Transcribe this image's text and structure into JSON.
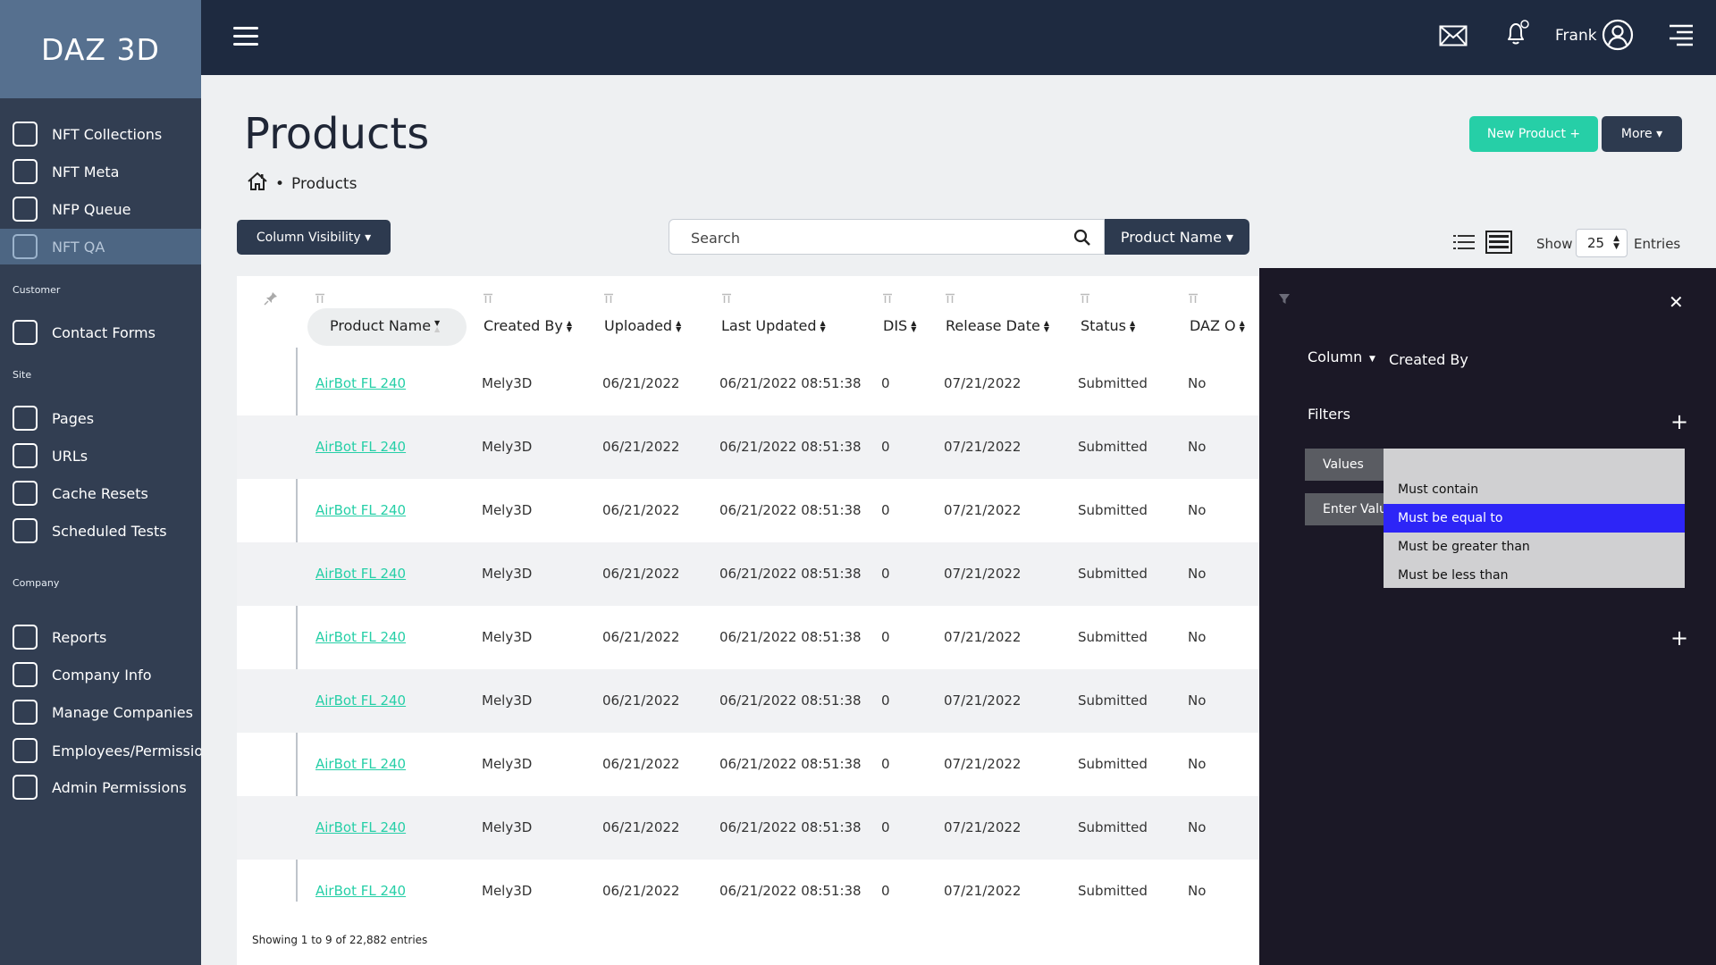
{
  "brand": "DAZ 3D",
  "sidebar": {
    "items": [
      {
        "label": "NFT Collections"
      },
      {
        "label": "NFT Meta"
      },
      {
        "label": "NFP Queue"
      },
      {
        "label": "NFT QA"
      }
    ],
    "sections": [
      {
        "title": "Customer",
        "items": [
          {
            "label": "Contact Forms"
          }
        ]
      },
      {
        "title": "Site",
        "items": [
          {
            "label": "Pages"
          },
          {
            "label": "URLs"
          },
          {
            "label": "Cache Resets"
          },
          {
            "label": "Scheduled Tests"
          }
        ]
      },
      {
        "title": "Company",
        "items": [
          {
            "label": "Reports"
          },
          {
            "label": "Company Info"
          },
          {
            "label": "Manage Companies"
          },
          {
            "label": "Employees/Permissions"
          },
          {
            "label": "Admin Permissions"
          }
        ]
      }
    ]
  },
  "topbar": {
    "username": "Frank"
  },
  "page": {
    "title": "Products",
    "breadcrumb": {
      "separator": "•",
      "current": "Products"
    },
    "new_product_label": "New Product +",
    "more_label": "More ▾"
  },
  "toolbar": {
    "column_visibility_label": "Column Visibility ▾",
    "search_placeholder": "Search",
    "search_field_label": "Product Name ▾",
    "show_label": "Show",
    "entries_value": "25",
    "entries_label": "Entries"
  },
  "table": {
    "columns": [
      "Product Name",
      "Created By",
      "Uploaded",
      "Last Updated",
      "DIS",
      "Release Date",
      "Status",
      "DAZ O"
    ],
    "rows": [
      [
        "AirBot FL 240",
        "Mely3D",
        "06/21/2022",
        "06/21/2022 08:51:38",
        "0",
        "07/21/2022",
        "Submitted",
        "No"
      ],
      [
        "AirBot FL 240",
        "Mely3D",
        "06/21/2022",
        "06/21/2022 08:51:38",
        "0",
        "07/21/2022",
        "Submitted",
        "No"
      ],
      [
        "AirBot FL 240",
        "Mely3D",
        "06/21/2022",
        "06/21/2022 08:51:38",
        "0",
        "07/21/2022",
        "Submitted",
        "No"
      ],
      [
        "AirBot FL 240",
        "Mely3D",
        "06/21/2022",
        "06/21/2022 08:51:38",
        "0",
        "07/21/2022",
        "Submitted",
        "No"
      ],
      [
        "AirBot FL 240",
        "Mely3D",
        "06/21/2022",
        "06/21/2022 08:51:38",
        "0",
        "07/21/2022",
        "Submitted",
        "No"
      ],
      [
        "AirBot FL 240",
        "Mely3D",
        "06/21/2022",
        "06/21/2022 08:51:38",
        "0",
        "07/21/2022",
        "Submitted",
        "No"
      ],
      [
        "AirBot FL 240",
        "Mely3D",
        "06/21/2022",
        "06/21/2022 08:51:38",
        "0",
        "07/21/2022",
        "Submitted",
        "No"
      ],
      [
        "AirBot FL 240",
        "Mely3D",
        "06/21/2022",
        "06/21/2022 08:51:38",
        "0",
        "07/21/2022",
        "Submitted",
        "No"
      ],
      [
        "AirBot FL 240",
        "Mely3D",
        "06/21/2022",
        "06/21/2022 08:51:38",
        "0",
        "07/21/2022",
        "Submitted",
        "No"
      ]
    ],
    "info": "Showing 1 to 9 of 22,882 entries"
  },
  "filter_panel": {
    "column_label": "Column",
    "column_value": "Created By",
    "filters_label": "Filters",
    "values_label": "Values",
    "enter_value_label": "Enter Value",
    "options": [
      "Must contain",
      "Must be equal to",
      "Must be greater than",
      "Must be less than"
    ],
    "selected_option": "Must be equal to"
  },
  "colors": {
    "accent": "#26cfa7",
    "sidebar": "#323e52",
    "topbar": "#1e2a40",
    "panel": "#1b1826",
    "selected": "#2d25f7"
  }
}
